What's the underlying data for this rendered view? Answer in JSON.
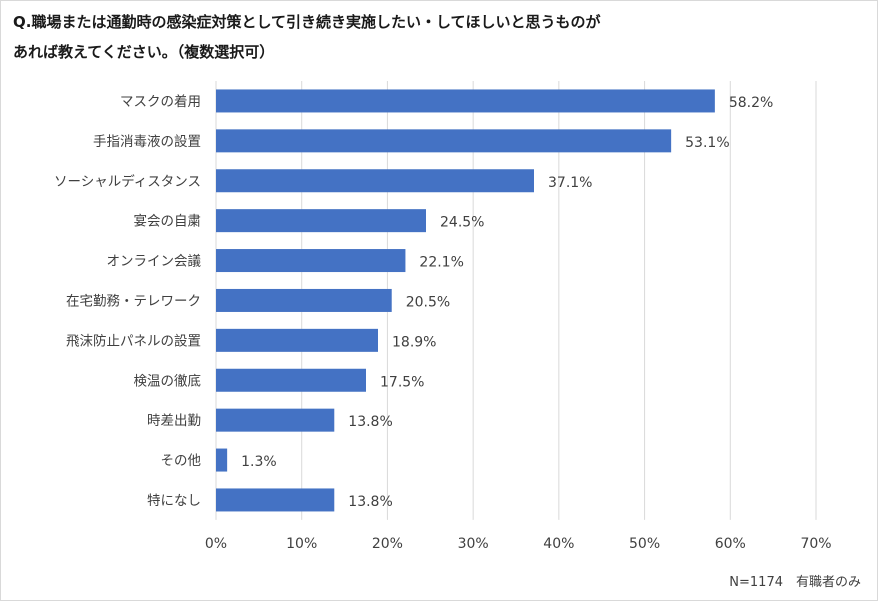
{
  "title_line1": "Q.職場または通勤時の感染症対策として引き続き実施したい・してほしいと思うものが",
  "title_line2": "あれば教えてください。（複数選択可）",
  "footnote": "N=1174　有職者のみ",
  "colors": {
    "bar": "#4472c4",
    "grid": "#d9d9d9",
    "text": "#404040"
  },
  "chart_data": {
    "type": "bar",
    "orientation": "horizontal",
    "categories": [
      "マスクの着用",
      "手指消毒液の設置",
      "ソーシャルディスタンス",
      "宴会の自粛",
      "オンライン会議",
      "在宅勤務・テレワーク",
      "飛沫防止パネルの設置",
      "検温の徹底",
      "時差出勤",
      "その他",
      "特になし"
    ],
    "values": [
      58.2,
      53.1,
      37.1,
      24.5,
      22.1,
      20.5,
      18.9,
      17.5,
      13.8,
      1.3,
      13.8
    ],
    "value_labels": [
      "58.2%",
      "53.1%",
      "37.1%",
      "24.5%",
      "22.1%",
      "20.5%",
      "18.9%",
      "17.5%",
      "13.8%",
      "1.3%",
      "13.8%"
    ],
    "xlim": [
      0,
      70
    ],
    "xticks": [
      0,
      10,
      20,
      30,
      40,
      50,
      60,
      70
    ],
    "xtick_labels": [
      "0%",
      "10%",
      "20%",
      "30%",
      "40%",
      "50%",
      "60%",
      "70%"
    ],
    "xlabel": "",
    "ylabel": "",
    "grid": true,
    "legend": "none"
  }
}
